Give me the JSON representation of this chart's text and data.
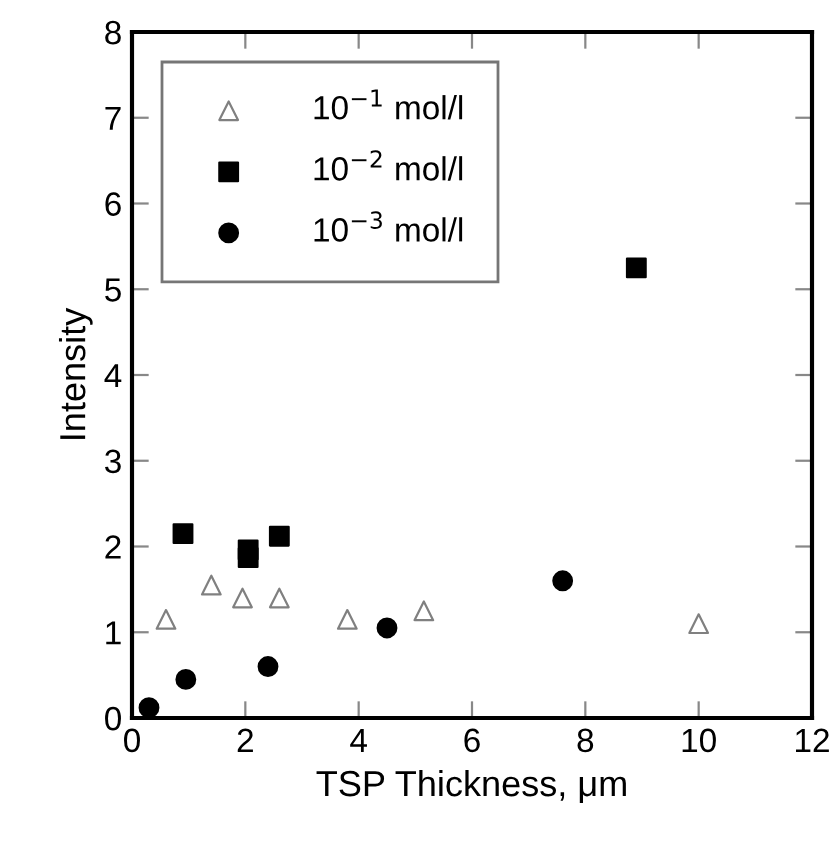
{
  "chart_data": {
    "type": "scatter",
    "xlabel": "TSP Thickness, μm",
    "ylabel": "Intensity",
    "xlim": [
      0,
      12
    ],
    "ylim": [
      0,
      8
    ],
    "xticks": [
      0,
      2,
      4,
      6,
      8,
      10,
      12
    ],
    "yticks": [
      0,
      1,
      2,
      3,
      4,
      5,
      6,
      7,
      8
    ],
    "grid": false,
    "legend": "top left",
    "series": [
      {
        "name": "10$^{−1}$ mol/l",
        "color": "#808080",
        "marker": "triangle",
        "x": [
          0.6,
          1.4,
          1.95,
          2.6,
          3.8,
          5.15,
          10
        ],
        "values": [
          1.15,
          1.55,
          1.4,
          1.4,
          1.15,
          1.25,
          1.1
        ]
      },
      {
        "name": "10$^{−2}$ mol/l",
        "color": "#000000",
        "marker": "square",
        "x": [
          0.9,
          2.05,
          2.05,
          2.6,
          8.9
        ],
        "values": [
          2.15,
          1.96,
          1.87,
          2.12,
          5.25
        ]
      },
      {
        "name": "10$^{−3}$ mol/l",
        "color": "#000000",
        "marker": "circle",
        "x": [
          0.3,
          0.95,
          2.4,
          4.5,
          7.6
        ],
        "values": [
          0.12,
          0.45,
          0.6,
          1.05,
          1.6
        ]
      }
    ]
  }
}
